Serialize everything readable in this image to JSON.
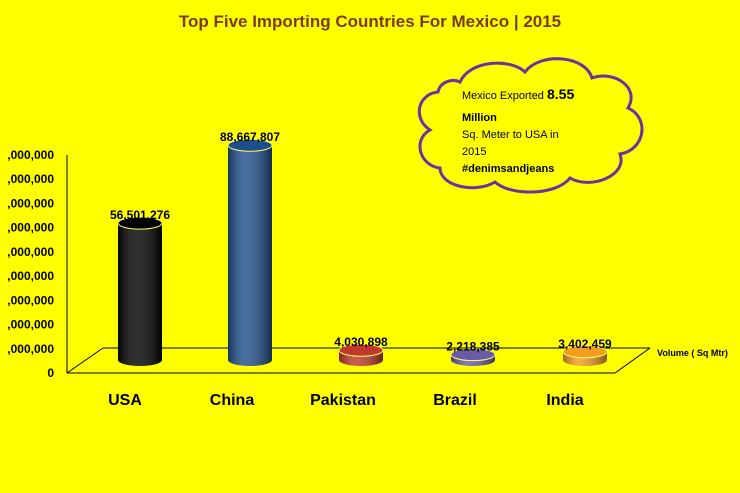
{
  "chart_data": {
    "type": "bar",
    "title": "Top Five Importing Countries For Mexico | 2015",
    "categories": [
      "USA",
      "China",
      "Pakistan",
      "Brazil",
      "India"
    ],
    "series": [
      {
        "name": "Volume ( Sq Mtr)",
        "values": [
          56501276,
          88667807,
          4030898,
          2218385,
          3402459
        ],
        "value_labels": [
          "56,501,276",
          "88,667,807",
          "4,030,898",
          "2,218,385",
          "3,402,459"
        ]
      }
    ],
    "y_tick_labels": [
      "0",
      ",000,000",
      ",000,000",
      ",000,000",
      ",000,000",
      ",000,000",
      ",000,000",
      ",000,000",
      ",000,000",
      ",000,000"
    ],
    "ylim": [
      0,
      90000000
    ],
    "grid": false,
    "colors": [
      "#000000",
      "#1f4e8c",
      "#c0392b",
      "#6a5aa8",
      "#f39c1f"
    ]
  },
  "annotation": {
    "line1_prefix": "Mexico Exported ",
    "line1_value": "8.55",
    "line2": "Million",
    "line3": "Sq. Meter to USA in",
    "line4": "2015",
    "line5": "#denimsandjeans"
  }
}
